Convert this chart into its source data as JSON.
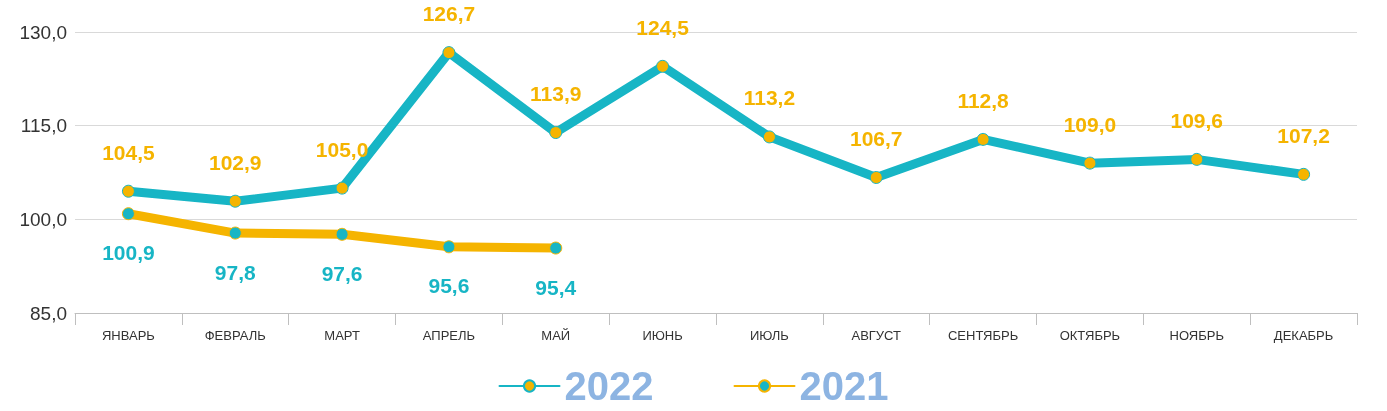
{
  "chart_data": {
    "type": "line",
    "categories": [
      "ЯНВАРЬ",
      "ФЕВРАЛЬ",
      "МАРТ",
      "АПРЕЛЬ",
      "МАЙ",
      "ИЮНЬ",
      "ИЮЛЬ",
      "АВГУСТ",
      "СЕНТЯБРЬ",
      "ОКТЯБРЬ",
      "НОЯБРЬ",
      "ДЕКАБРЬ"
    ],
    "series": [
      {
        "name": "2022",
        "color": "#17b5c5",
        "values": [
          104.5,
          102.9,
          105.0,
          126.7,
          113.9,
          124.5,
          113.2,
          106.7,
          112.8,
          109.0,
          109.6,
          107.2
        ],
        "value_labels": [
          "104,5",
          "102,9",
          "105,0",
          "126,7",
          "113,9",
          "124,5",
          "113,2",
          "106,7",
          "112,8",
          "109,0",
          "109,6",
          "107,2"
        ]
      },
      {
        "name": "2021",
        "color": "#f5b400",
        "values": [
          100.9,
          97.8,
          97.6,
          95.6,
          95.4,
          null,
          null,
          null,
          null,
          null,
          null,
          null
        ],
        "value_labels": [
          "100,9",
          "97,8",
          "97,6",
          "95,6",
          "95,4",
          null,
          null,
          null,
          null,
          null,
          null,
          null
        ]
      }
    ],
    "ylim": [
      85,
      130
    ],
    "yticks": [
      {
        "value": 85,
        "label": "85,0"
      },
      {
        "value": 100,
        "label": "100,0"
      },
      {
        "value": 115,
        "label": "115,0"
      },
      {
        "value": 130,
        "label": "130,0"
      }
    ],
    "grid": "y",
    "legend": "bottom",
    "marker": "circle"
  }
}
